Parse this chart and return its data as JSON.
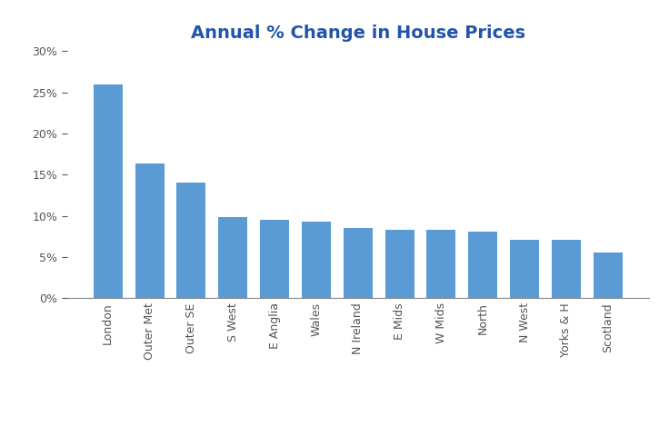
{
  "title": "Annual % Change in House Prices",
  "title_color": "#2255AA",
  "title_fontsize": 14,
  "categories": [
    "London",
    "Outer Met",
    "Outer SE",
    "S West",
    "E Anglia",
    "Wales",
    "N Ireland",
    "E Mids",
    "W Mids",
    "North",
    "N West",
    "Yorks & H",
    "Scotland"
  ],
  "values": [
    26.0,
    16.4,
    14.0,
    9.9,
    9.5,
    9.3,
    8.5,
    8.3,
    8.3,
    8.1,
    7.1,
    7.1,
    5.5
  ],
  "bar_color": "#5B9BD5",
  "ylim": [
    0,
    30
  ],
  "yticks": [
    0,
    5,
    10,
    15,
    20,
    25,
    30
  ],
  "background_color": "#FFFFFF",
  "figsize": [
    7.36,
    4.69
  ],
  "dpi": 100
}
